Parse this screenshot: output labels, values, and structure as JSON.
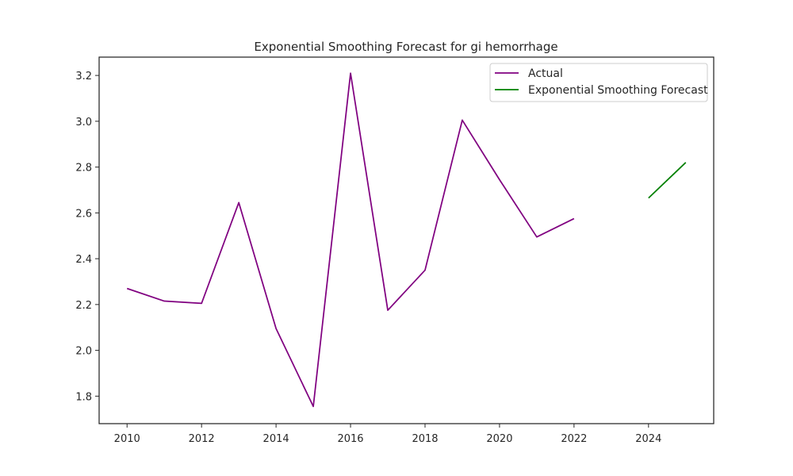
{
  "chart_data": {
    "type": "line",
    "title": "Exponential Smoothing Forecast for gi hemorrhage",
    "xlabel": "",
    "ylabel": "",
    "xlim": [
      2009.25,
      2025.75
    ],
    "ylim": [
      1.68,
      3.28
    ],
    "x_ticks": [
      "2010",
      "2012",
      "2014",
      "2016",
      "2018",
      "2020",
      "2022",
      "2024"
    ],
    "y_ticks": [
      "1.8",
      "2.0",
      "2.2",
      "2.4",
      "2.6",
      "2.8",
      "3.0",
      "3.2"
    ],
    "grid": false,
    "legend_position": "top-right",
    "series": [
      {
        "name": "Actual",
        "color": "#800080",
        "x": [
          2010,
          2011,
          2012,
          2013,
          2014,
          2015,
          2016,
          2017,
          2018,
          2019,
          2020,
          2021,
          2022
        ],
        "y": [
          2.27,
          2.215,
          2.205,
          2.645,
          2.095,
          1.755,
          3.21,
          2.175,
          2.35,
          3.005,
          2.745,
          2.495,
          2.575
        ]
      },
      {
        "name": "Exponential Smoothing Forecast",
        "color": "#008000",
        "x": [
          2024,
          2025
        ],
        "y": [
          2.665,
          2.82
        ]
      }
    ]
  }
}
